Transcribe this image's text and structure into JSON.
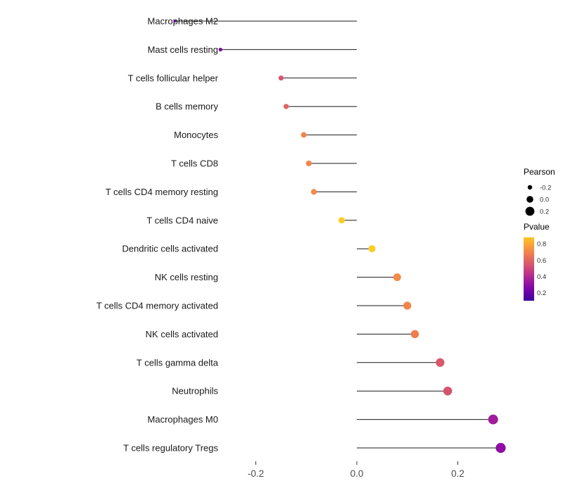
{
  "chart_data": {
    "type": "lollipop",
    "title": "",
    "xlabel": "",
    "ylabel": "",
    "xlim": [
      -0.42,
      0.34
    ],
    "x_ticks": [
      {
        "value": -0.2,
        "label": "-0.2"
      },
      {
        "value": 0.0,
        "label": "0.0"
      },
      {
        "value": 0.2,
        "label": "0.2"
      }
    ],
    "grid": false,
    "categories": [
      "Macrophages M2",
      "Mast cells resting",
      "T cells follicular helper",
      "B cells memory",
      "Monocytes",
      "T cells CD8",
      "T cells CD4 memory resting",
      "T cells CD4 naive",
      "Dendritic cells activated",
      "NK cells resting",
      "T cells CD4 memory activated",
      "NK cells activated",
      "T cells gamma delta",
      "Neutrophils",
      "Macrophages M0",
      "T cells regulatory  Tregs"
    ],
    "series": [
      {
        "name": "Pearson",
        "values": [
          -0.36,
          -0.27,
          -0.15,
          -0.14,
          -0.105,
          -0.095,
          -0.085,
          -0.03,
          0.03,
          0.08,
          0.1,
          0.115,
          0.165,
          0.18,
          0.27,
          0.285
        ]
      },
      {
        "name": "Pvalue",
        "values": [
          0.2,
          0.25,
          0.55,
          0.6,
          0.7,
          0.7,
          0.72,
          0.9,
          0.9,
          0.72,
          0.7,
          0.68,
          0.56,
          0.54,
          0.35,
          0.3
        ]
      }
    ],
    "legend": {
      "position": "right",
      "size_legend": {
        "title": "Pearson",
        "ticks": [
          {
            "value": -0.2,
            "label": "-0.2"
          },
          {
            "value": 0.0,
            "label": "0.0"
          },
          {
            "value": 0.2,
            "label": "0.2"
          }
        ]
      },
      "color_legend": {
        "title": "Pvalue",
        "ticks": [
          {
            "value": 0.8,
            "label": "0.8"
          },
          {
            "value": 0.6,
            "label": "0.6"
          },
          {
            "value": 0.4,
            "label": "0.4"
          },
          {
            "value": 0.2,
            "label": "0.2"
          }
        ],
        "domain_top": 0.88,
        "domain_bottom": 0.1
      }
    },
    "palette": {
      "name": "plasma",
      "stops": [
        "#0d0887",
        "#41049d",
        "#6a00a8",
        "#8f0da4",
        "#b12a90",
        "#cc4778",
        "#e16462",
        "#f2844b",
        "#fca636",
        "#fcce25",
        "#f0f921"
      ],
      "stem_color": "#1a1a1a",
      "category_text_color": "#1a1a1a",
      "tick_text_color": "#4d4d4d",
      "legend_title_color": "#000000",
      "legend_label_color": "#303030"
    }
  }
}
